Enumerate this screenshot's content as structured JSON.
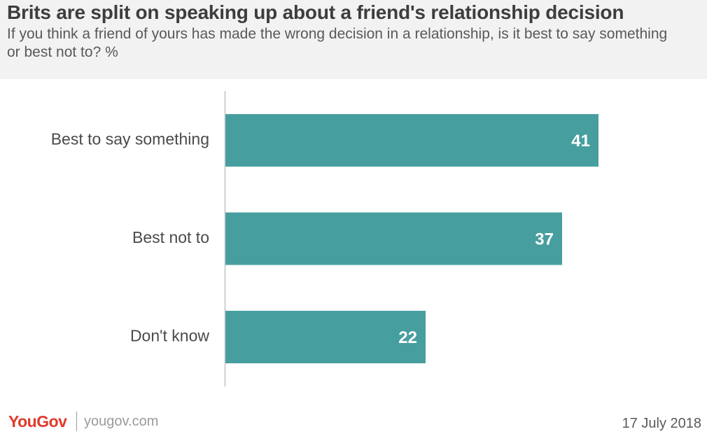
{
  "header": {
    "title": "Brits are split on speaking up about a friend's relationship decision",
    "subtitle": "If you think a friend of yours has made the wrong decision in a relationship, is it best to say something or best not to? %"
  },
  "chart_data": {
    "type": "bar",
    "orientation": "horizontal",
    "categories": [
      "Best to say something",
      "Best not to",
      "Don't know"
    ],
    "values": [
      41,
      37,
      22
    ],
    "xlim": [
      0,
      50
    ],
    "grid": false,
    "bar_color": "#479e9f",
    "label_color": "#ffffff"
  },
  "footer": {
    "brand": "YouGov",
    "url": "yougov.com",
    "date": "17 July 2018",
    "brand_color": "#e03a2c"
  }
}
